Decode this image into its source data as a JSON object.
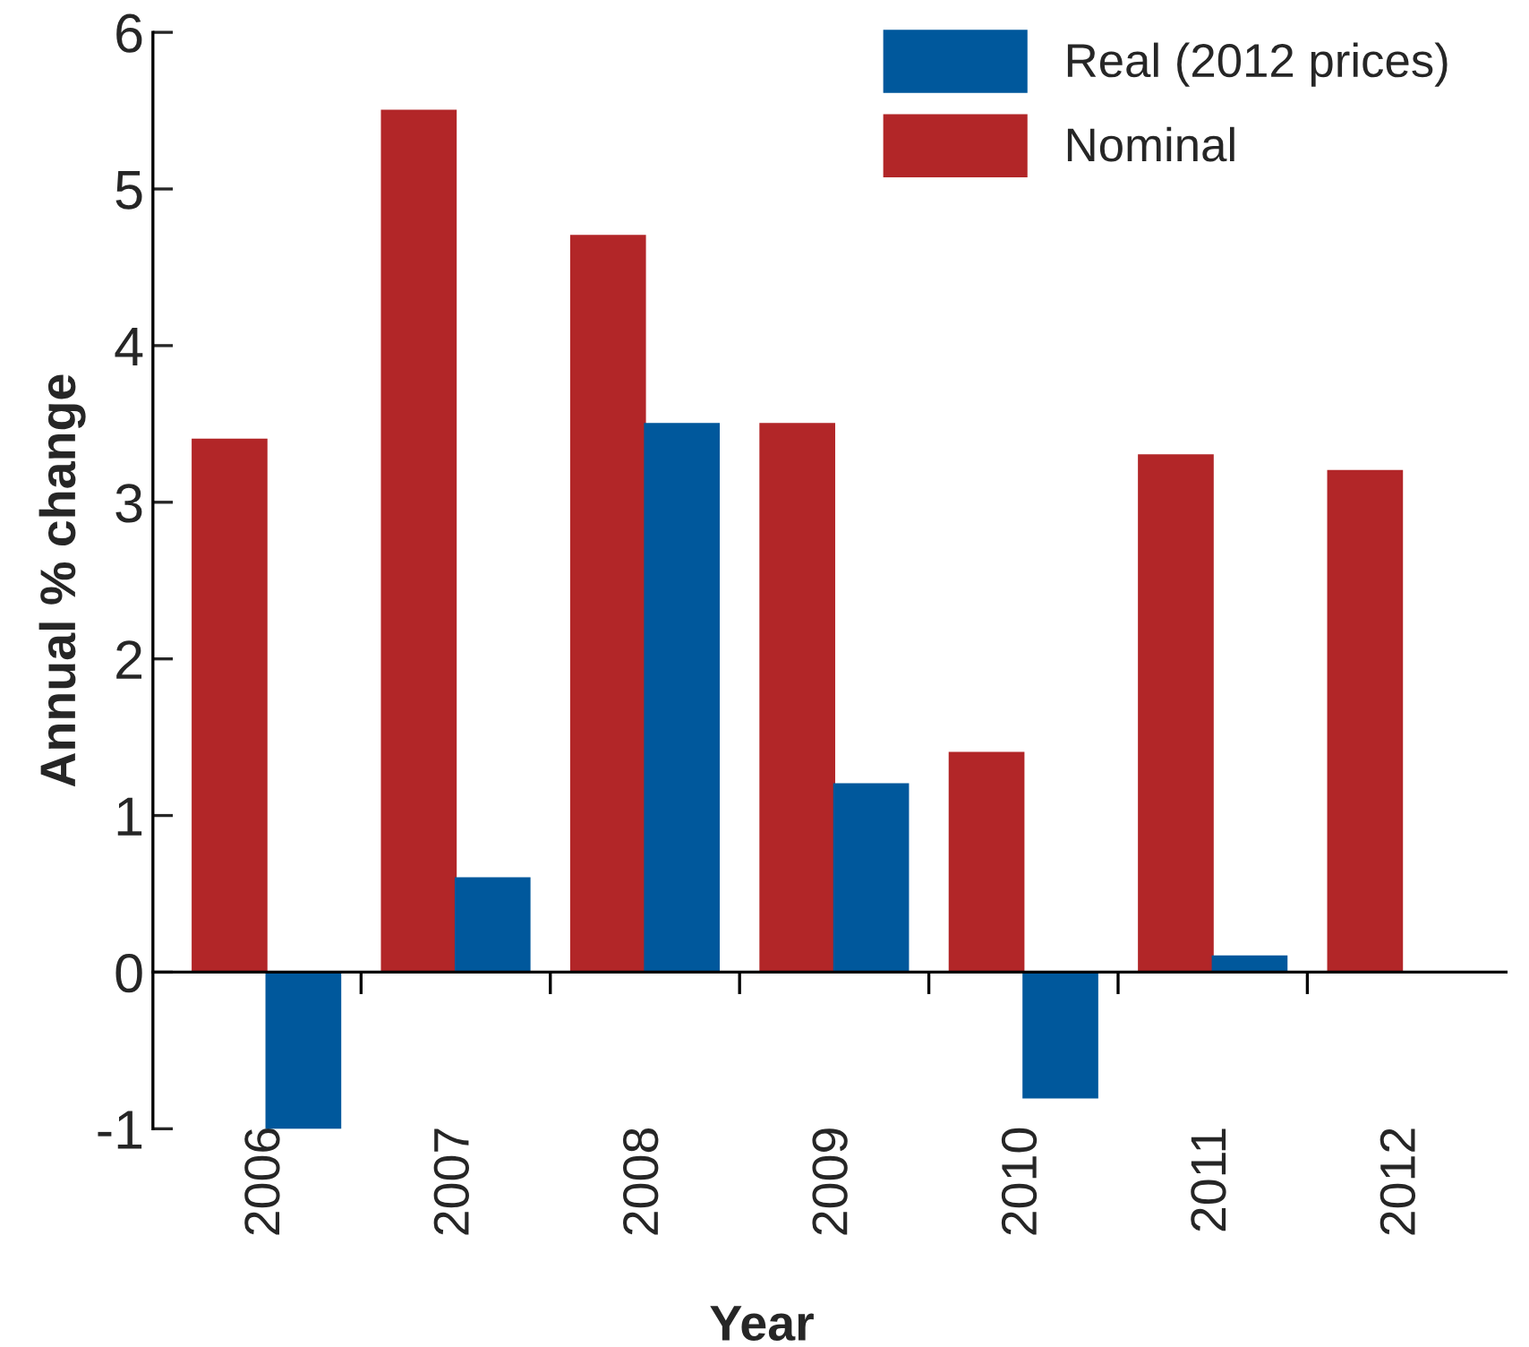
{
  "chart_data": {
    "type": "bar",
    "xlabel": "Year",
    "ylabel": "Annual % change",
    "categories": [
      "2006",
      "2007",
      "2008",
      "2009",
      "2010",
      "2011",
      "2012"
    ],
    "series": [
      {
        "name": "Nominal",
        "color": "#b22628",
        "values": [
          3.4,
          5.5,
          4.7,
          3.5,
          1.4,
          3.3,
          3.2
        ]
      },
      {
        "name": "Real (2012 prices)",
        "color": "#00589c",
        "values": [
          -1.0,
          0.6,
          3.5,
          1.2,
          -0.8,
          0.1,
          0.0
        ]
      }
    ],
    "ylim": [
      -1,
      6
    ],
    "yticks": [
      -1,
      0,
      1,
      2,
      3,
      4,
      5,
      6
    ],
    "legend": "top right"
  }
}
